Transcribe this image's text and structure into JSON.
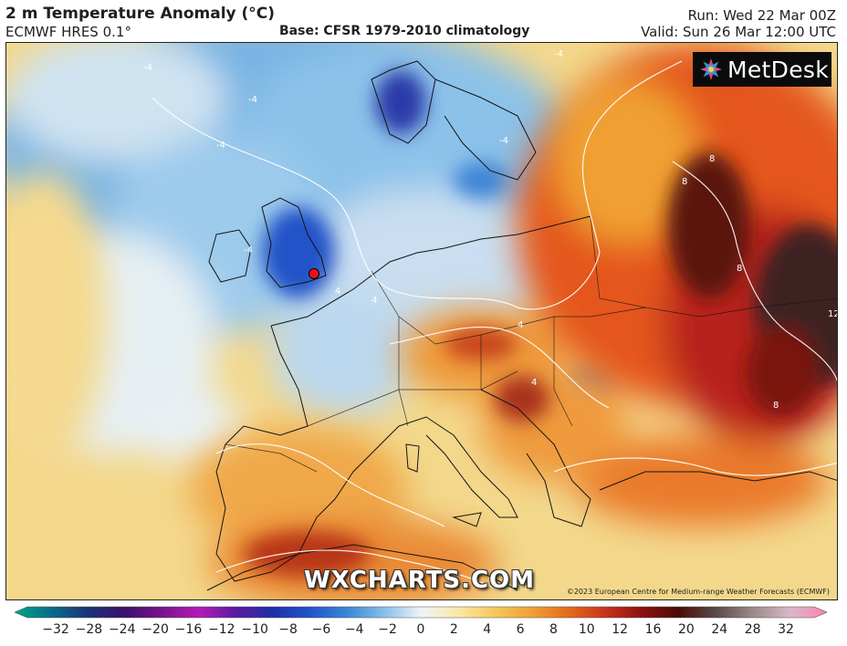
{
  "header": {
    "title": "2 m Temperature Anomaly (°C)",
    "model": "ECMWF HRES 0.1°",
    "base": "Base: CFSR 1979-2010 climatology",
    "run": "Run: Wed 22 Mar 00Z",
    "valid": "Valid: Sun 26 Mar 12:00 UTC"
  },
  "logos": {
    "metdesk": "MetDesk",
    "wxcharts": "WXCHARTS.COM",
    "copyright": "©2023 European Centre for Medium-range Weather Forecasts (ECMWF)"
  },
  "colorbar": {
    "ticks": [
      "−32",
      "−28",
      "−24",
      "−20",
      "−16",
      "−12",
      "−10",
      "−8",
      "−6",
      "−4",
      "−2",
      "0",
      "2",
      "4",
      "6",
      "8",
      "10",
      "12",
      "16",
      "20",
      "24",
      "28",
      "32"
    ],
    "colors": [
      "#00a884",
      "#0b6a8a",
      "#1a3278",
      "#3b0f6a",
      "#7a138c",
      "#b41ab7",
      "#5a1aa0",
      "#1f2fa8",
      "#1f55c8",
      "#3a86d8",
      "#86bee8",
      "#eef4f8",
      "#fbe8a8",
      "#f5c85a",
      "#f0a032",
      "#e66a1c",
      "#c8341a",
      "#8c1010",
      "#4a0c08",
      "#5a4a4a",
      "#9a8a8a",
      "#d8b8c8",
      "#ff80b0"
    ]
  },
  "map": {
    "marker": "London",
    "contour_labels": [
      "-4",
      "-4",
      "-4",
      "-4",
      "-4",
      "-4",
      "4",
      "4",
      "4",
      "4",
      "8",
      "8",
      "8",
      "8",
      "12"
    ]
  }
}
